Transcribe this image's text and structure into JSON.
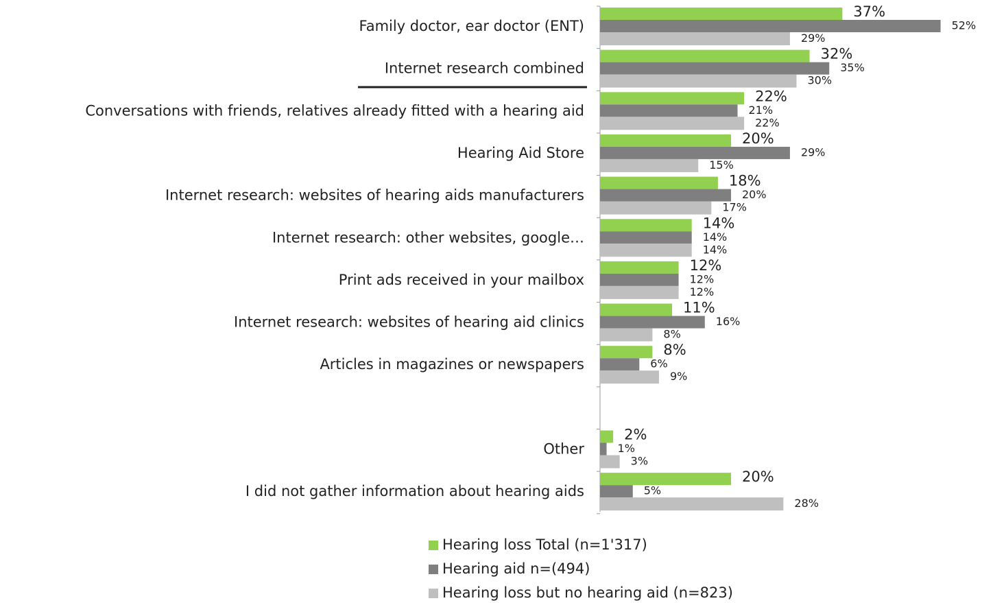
{
  "chart_data": {
    "type": "bar",
    "orientation": "horizontal",
    "categories": [
      "Family doctor, ear doctor (ENT)",
      "Internet research combined",
      "Conversations with friends, relatives already fitted with a hearing aid",
      "Hearing Aid Store",
      "Internet research: websites of hearing aids manufacturers",
      "Internet research: other websites, google…",
      "Print ads received in your mailbox",
      "Internet research: websites of hearing aid clinics",
      "Articles in magazines or newspapers",
      null,
      "Other",
      "I did not gather information about hearing aids"
    ],
    "series": [
      {
        "name": "Hearing loss Total (n=1'317)",
        "color": "#92d050",
        "values": [
          37,
          32,
          22,
          20,
          18,
          14,
          12,
          11,
          8,
          null,
          2,
          20
        ],
        "value_labels": [
          "37%",
          "32%",
          "22%",
          "20%",
          "18%",
          "14%",
          "12%",
          "11%",
          "8%",
          null,
          "2%",
          "20%"
        ]
      },
      {
        "name": "Hearing aid n=(494)",
        "color": "#7f7f7f",
        "values": [
          52,
          35,
          21,
          29,
          20,
          14,
          12,
          16,
          6,
          null,
          1,
          5
        ],
        "value_labels": [
          "52%",
          "35%",
          "21%",
          "29%",
          "20%",
          "14%",
          "12%",
          "16%",
          "6%",
          null,
          "1%",
          "5%"
        ]
      },
      {
        "name": "Hearing loss but no hearing aid (n=823)",
        "color": "#bfbfbf",
        "values": [
          29,
          30,
          22,
          15,
          17,
          14,
          12,
          8,
          9,
          null,
          3,
          28
        ],
        "value_labels": [
          "29%",
          "30%",
          "22%",
          "15%",
          "17%",
          "14%",
          "12%",
          "8%",
          "9%",
          null,
          "3%",
          "28%"
        ]
      }
    ]
  }
}
